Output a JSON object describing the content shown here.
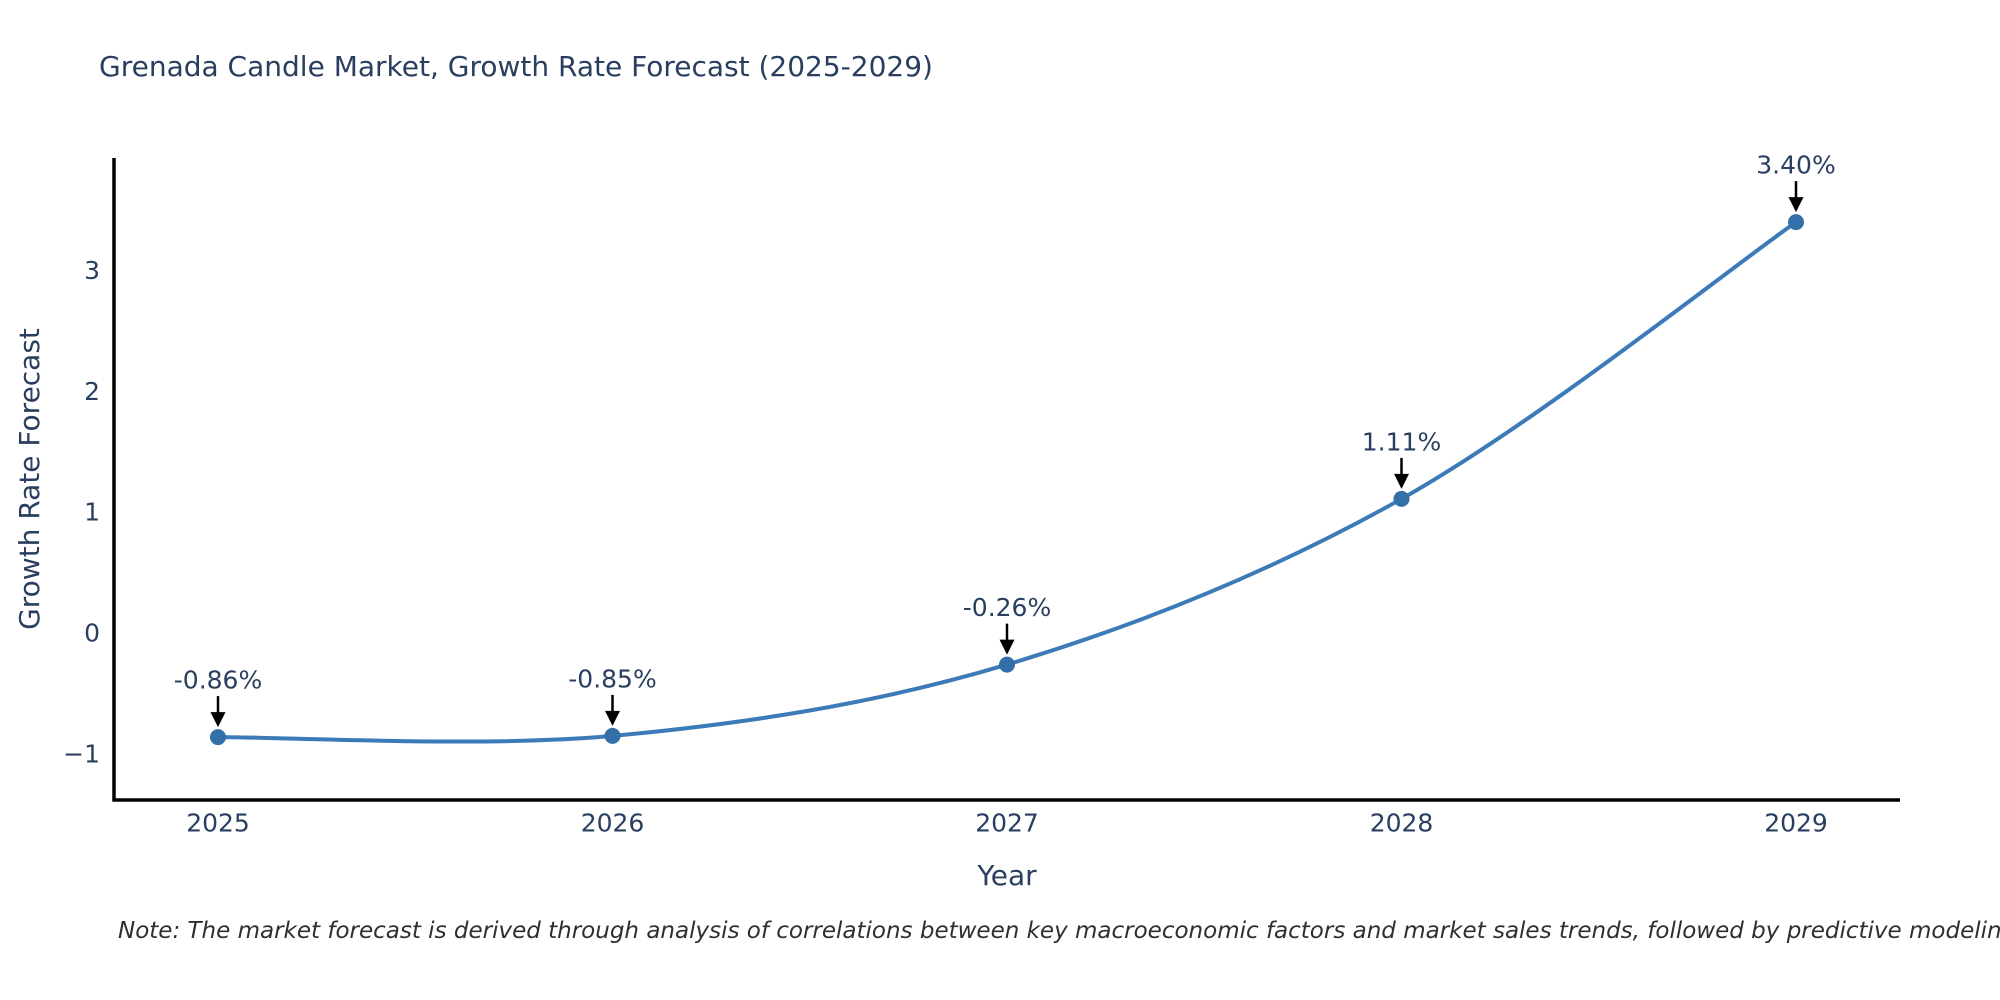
{
  "title": "Grenada Candle Market, Growth Rate Forecast (2025-2029)",
  "note": "Note: The market forecast is derived through analysis of correlations between key macroeconomic factors and market sales trends, followed by predictive modeling to project future sales",
  "chart_data": {
    "type": "line",
    "title": "Grenada Candle Market, Growth Rate Forecast (2025-2029)",
    "xlabel": "Year",
    "ylabel": "Growth Rate Forecast",
    "categories": [
      "2025",
      "2026",
      "2027",
      "2028",
      "2029"
    ],
    "series": [
      {
        "name": "Growth Rate Forecast",
        "values": [
          -0.86,
          -0.85,
          -0.26,
          1.11,
          3.4
        ]
      }
    ],
    "point_labels": [
      "-0.86%",
      "-0.85%",
      "-0.26%",
      "1.11%",
      "3.40%"
    ],
    "yticks": [
      -1,
      0,
      1,
      2,
      3
    ],
    "ylim": [
      -1.38,
      3.93
    ],
    "line_shape": "spline",
    "grid": false,
    "legend": "none",
    "markers": true,
    "annotation_arrows": true,
    "colors": {
      "line": "#3d7bb8",
      "marker": "#336fa8",
      "axis": "#000000",
      "text": "#2a3f5f",
      "arrow": "#000000",
      "note_text": "#2f2f2f",
      "background": "#ffffff"
    }
  }
}
